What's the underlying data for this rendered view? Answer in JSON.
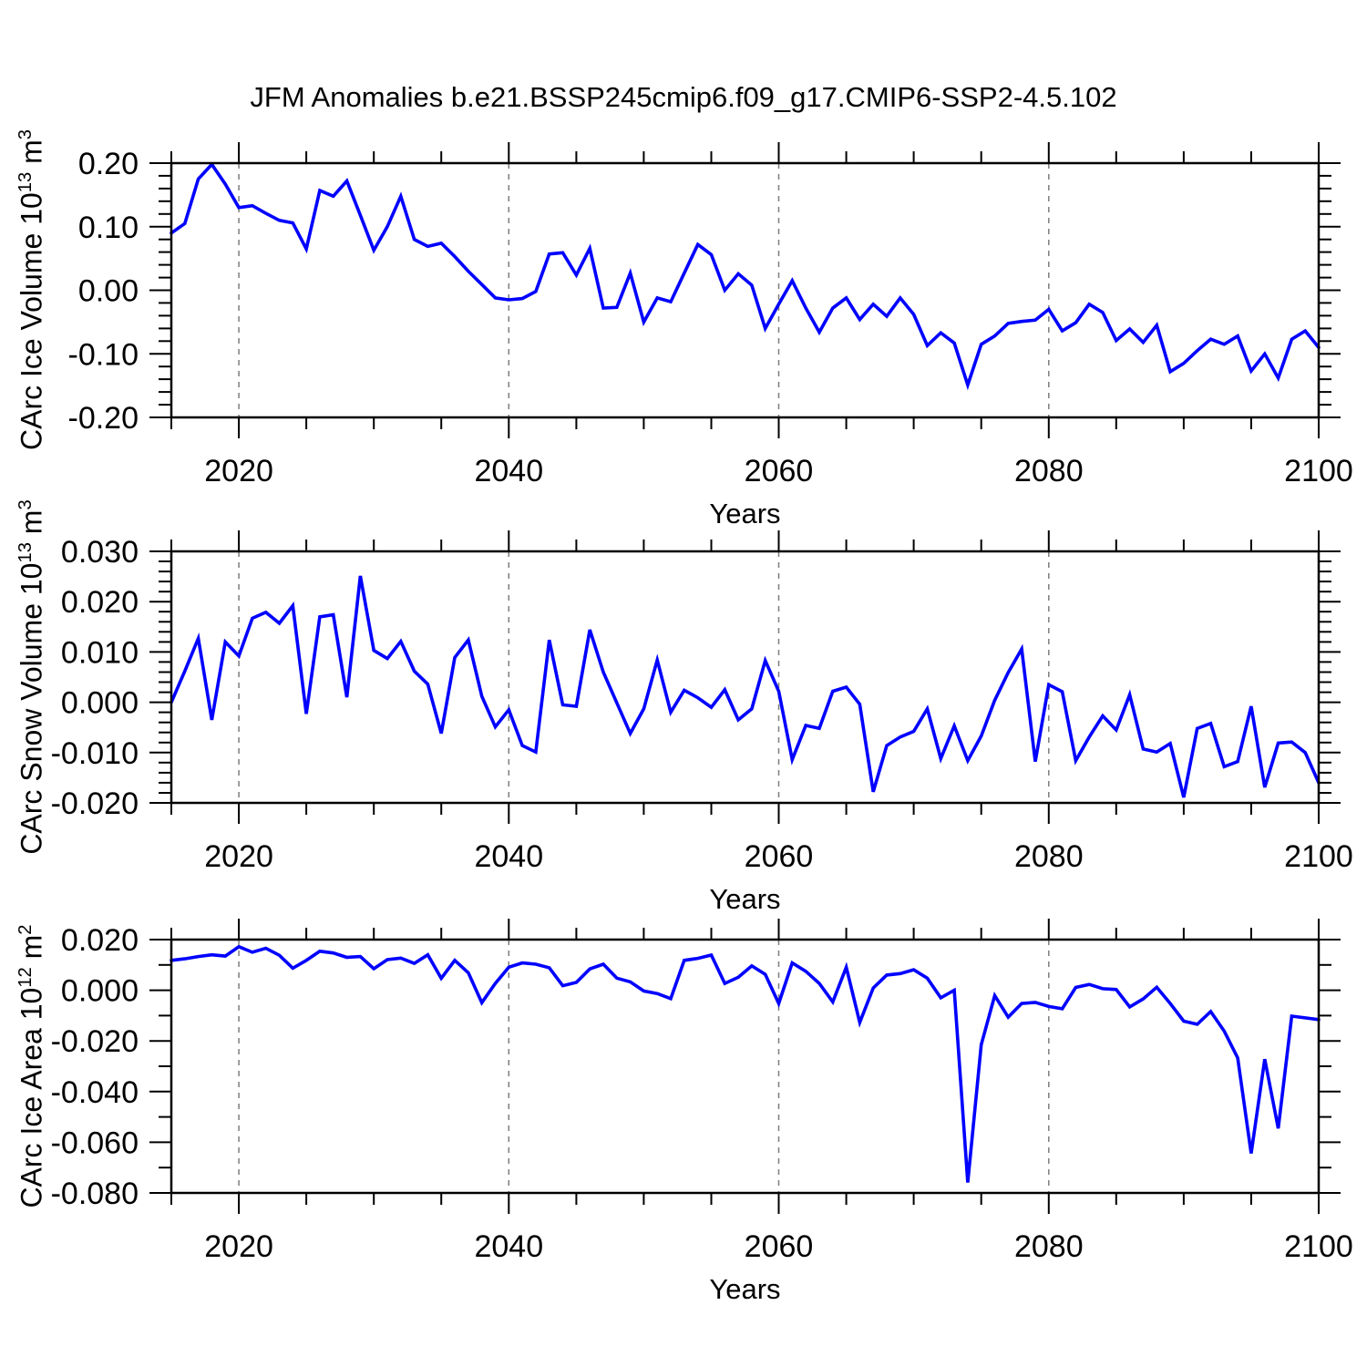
{
  "title": "JFM Anomalies b.e21.BSSP245cmip6.f09_g17.CMIP6-SSP2-4.5.102",
  "colors": {
    "line": "#0000ff",
    "grid": "#7d7d7d",
    "axis": "#000000"
  },
  "axes": {
    "xlabel": "Years",
    "xlim": [
      2015,
      2100
    ],
    "xticks_major": [
      2020,
      2040,
      2060,
      2080,
      2100
    ],
    "xtick_minor_step": 5,
    "grid_years": [
      2020,
      2040,
      2060,
      2080
    ]
  },
  "chart_data": [
    {
      "type": "line",
      "name": "ice-volume",
      "ylabel": "CArc Ice Volume 10^13 m^3",
      "ylabel_parts": [
        {
          "t": "CArc Ice Volume 10"
        },
        {
          "t": "13",
          "sup": true
        },
        {
          "t": " m"
        },
        {
          "t": "3",
          "sup": true
        }
      ],
      "ylim": [
        -0.2,
        0.2
      ],
      "ytick_major_step": 0.1,
      "ytick_minor_step": 0.02,
      "ytick_decimals": 2,
      "x_start_year": 2015,
      "values": [
        0.09,
        0.105,
        0.175,
        0.198,
        0.167,
        0.13,
        0.133,
        0.121,
        0.11,
        0.106,
        0.065,
        0.157,
        0.148,
        0.172,
        0.118,
        0.063,
        0.1,
        0.148,
        0.08,
        0.069,
        0.074,
        0.053,
        0.03,
        0.009,
        -0.012,
        -0.015,
        -0.013,
        -0.002,
        0.057,
        0.059,
        0.024,
        0.066,
        -0.028,
        -0.027,
        0.027,
        -0.05,
        -0.012,
        -0.018,
        0.027,
        0.072,
        0.056,
        0.0,
        0.026,
        0.008,
        -0.06,
        -0.022,
        0.015,
        -0.028,
        -0.066,
        -0.028,
        -0.012,
        -0.046,
        -0.022,
        -0.041,
        -0.012,
        -0.038,
        -0.087,
        -0.067,
        -0.083,
        -0.149,
        -0.085,
        -0.072,
        -0.052,
        -0.049,
        -0.047,
        -0.03,
        -0.064,
        -0.051,
        -0.022,
        -0.035,
        -0.079,
        -0.061,
        -0.082,
        -0.055,
        -0.128,
        -0.115,
        -0.095,
        -0.077,
        -0.085,
        -0.072,
        -0.127,
        -0.1,
        -0.138,
        -0.077,
        -0.064,
        -0.09
      ]
    },
    {
      "type": "line",
      "name": "snow-volume",
      "ylabel": "CArc Snow Volume 10^13 m^3",
      "ylabel_parts": [
        {
          "t": "CArc Snow Volume 10"
        },
        {
          "t": "13",
          "sup": true
        },
        {
          "t": " m"
        },
        {
          "t": "3",
          "sup": true
        }
      ],
      "ylim": [
        -0.02,
        0.03
      ],
      "ytick_major_step": 0.01,
      "ytick_minor_step": 0.002,
      "ytick_decimals": 3,
      "x_start_year": 2015,
      "values": [
        0.0,
        0.0062,
        0.0127,
        -0.0035,
        0.012,
        0.0092,
        0.0167,
        0.0179,
        0.0157,
        0.0192,
        -0.0023,
        0.017,
        0.0174,
        0.001,
        0.0251,
        0.0103,
        0.0087,
        0.0121,
        0.0062,
        0.0036,
        -0.0062,
        0.0089,
        0.0124,
        0.0012,
        -0.0049,
        -0.0015,
        -0.0086,
        -0.0099,
        0.0124,
        -0.0005,
        -0.0008,
        0.0144,
        0.006,
        -0.0001,
        -0.0062,
        -0.0013,
        0.0084,
        -0.002,
        0.0024,
        0.0009,
        -0.001,
        0.0025,
        -0.0035,
        -0.0013,
        0.0083,
        0.0022,
        -0.0114,
        -0.0046,
        -0.0052,
        0.0022,
        0.003,
        -0.0004,
        -0.0178,
        -0.0086,
        -0.0069,
        -0.0058,
        -0.0013,
        -0.0112,
        -0.0047,
        -0.0116,
        -0.0067,
        0.0004,
        0.0059,
        0.0106,
        -0.0118,
        0.0035,
        0.0021,
        -0.0116,
        -0.0069,
        -0.0027,
        -0.0055,
        0.0015,
        -0.0093,
        -0.0099,
        -0.0082,
        -0.0189,
        -0.0052,
        -0.0042,
        -0.0128,
        -0.0118,
        -0.0008,
        -0.0169,
        -0.0081,
        -0.0079,
        -0.01,
        -0.016
      ]
    },
    {
      "type": "line",
      "name": "ice-area",
      "ylabel": "CArc Ice Area 10^12 m^2",
      "ylabel_parts": [
        {
          "t": "CArc Ice Area 10"
        },
        {
          "t": "12",
          "sup": true
        },
        {
          "t": " m"
        },
        {
          "t": "2",
          "sup": true
        }
      ],
      "ylim": [
        -0.08,
        0.02
      ],
      "ytick_major_step": 0.02,
      "ytick_minor_step": 0.01,
      "ytick_decimals": 3,
      "x_start_year": 2015,
      "values": [
        0.0118,
        0.0124,
        0.0133,
        0.014,
        0.0135,
        0.0172,
        0.015,
        0.0166,
        0.0138,
        0.0087,
        0.0118,
        0.0154,
        0.0147,
        0.013,
        0.0133,
        0.0085,
        0.0121,
        0.0127,
        0.0106,
        0.014,
        0.0047,
        0.0118,
        0.0069,
        -0.0049,
        0.0027,
        0.0091,
        0.0108,
        0.0103,
        0.0089,
        0.0018,
        0.0031,
        0.0084,
        0.0103,
        0.0048,
        0.0033,
        -0.0003,
        -0.0013,
        -0.0033,
        0.0118,
        0.0126,
        0.0139,
        0.0027,
        0.0051,
        0.0096,
        0.0063,
        -0.0052,
        0.0108,
        0.0075,
        0.0027,
        -0.0046,
        0.0091,
        -0.0127,
        0.0009,
        0.006,
        0.0066,
        0.0081,
        0.0048,
        -0.003,
        0.0,
        -0.0759,
        -0.0215,
        -0.0021,
        -0.0106,
        -0.0052,
        -0.0048,
        -0.0064,
        -0.0073,
        0.0011,
        0.0023,
        0.0006,
        0.0003,
        -0.0066,
        -0.0034,
        0.0012,
        -0.0052,
        -0.0122,
        -0.0134,
        -0.0084,
        -0.0161,
        -0.0267,
        -0.0644,
        -0.0272,
        -0.0545,
        -0.0102,
        -0.0109,
        -0.0116
      ]
    }
  ]
}
